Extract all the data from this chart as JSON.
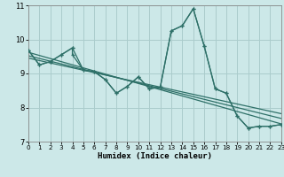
{
  "xlabel": "Humidex (Indice chaleur)",
  "bg_color": "#cce8e8",
  "grid_color": "#aacccc",
  "line_color": "#2e7068",
  "xlim": [
    0,
    23
  ],
  "ylim": [
    7,
    11
  ],
  "yticks": [
    7,
    8,
    9,
    10,
    11
  ],
  "xticks": [
    0,
    1,
    2,
    3,
    4,
    5,
    6,
    7,
    8,
    9,
    10,
    11,
    12,
    13,
    14,
    15,
    16,
    17,
    18,
    19,
    20,
    21,
    22,
    23
  ],
  "main_line": {
    "x": [
      0,
      1,
      2,
      3,
      4,
      4,
      5,
      6,
      7,
      8,
      9,
      10,
      11,
      12,
      13,
      14,
      15,
      16,
      17,
      18,
      19,
      20,
      21,
      22,
      23
    ],
    "y": [
      9.68,
      9.25,
      9.35,
      9.55,
      9.75,
      9.55,
      9.1,
      9.05,
      8.82,
      8.42,
      8.62,
      8.9,
      8.55,
      8.6,
      10.25,
      10.4,
      10.9,
      9.8,
      8.55,
      8.42,
      7.75,
      7.4,
      7.45,
      7.45,
      7.5
    ]
  },
  "line2": {
    "x": [
      0,
      1,
      2,
      3,
      4,
      5,
      6,
      7,
      8,
      9,
      10,
      11,
      12,
      13,
      14,
      15,
      16,
      17,
      18,
      19,
      20,
      21,
      22,
      23
    ],
    "y": [
      9.68,
      9.25,
      9.35,
      9.55,
      9.75,
      9.1,
      9.05,
      8.82,
      8.42,
      8.62,
      8.9,
      8.55,
      8.6,
      10.25,
      10.4,
      10.9,
      9.8,
      8.55,
      8.42,
      7.75,
      7.4,
      7.45,
      7.45,
      7.5
    ]
  },
  "reg_lines": [
    {
      "x": [
        0,
        23
      ],
      "y": [
        9.62,
        7.52
      ]
    },
    {
      "x": [
        0,
        23
      ],
      "y": [
        9.52,
        7.68
      ]
    },
    {
      "x": [
        0,
        23
      ],
      "y": [
        9.45,
        7.82
      ]
    }
  ]
}
